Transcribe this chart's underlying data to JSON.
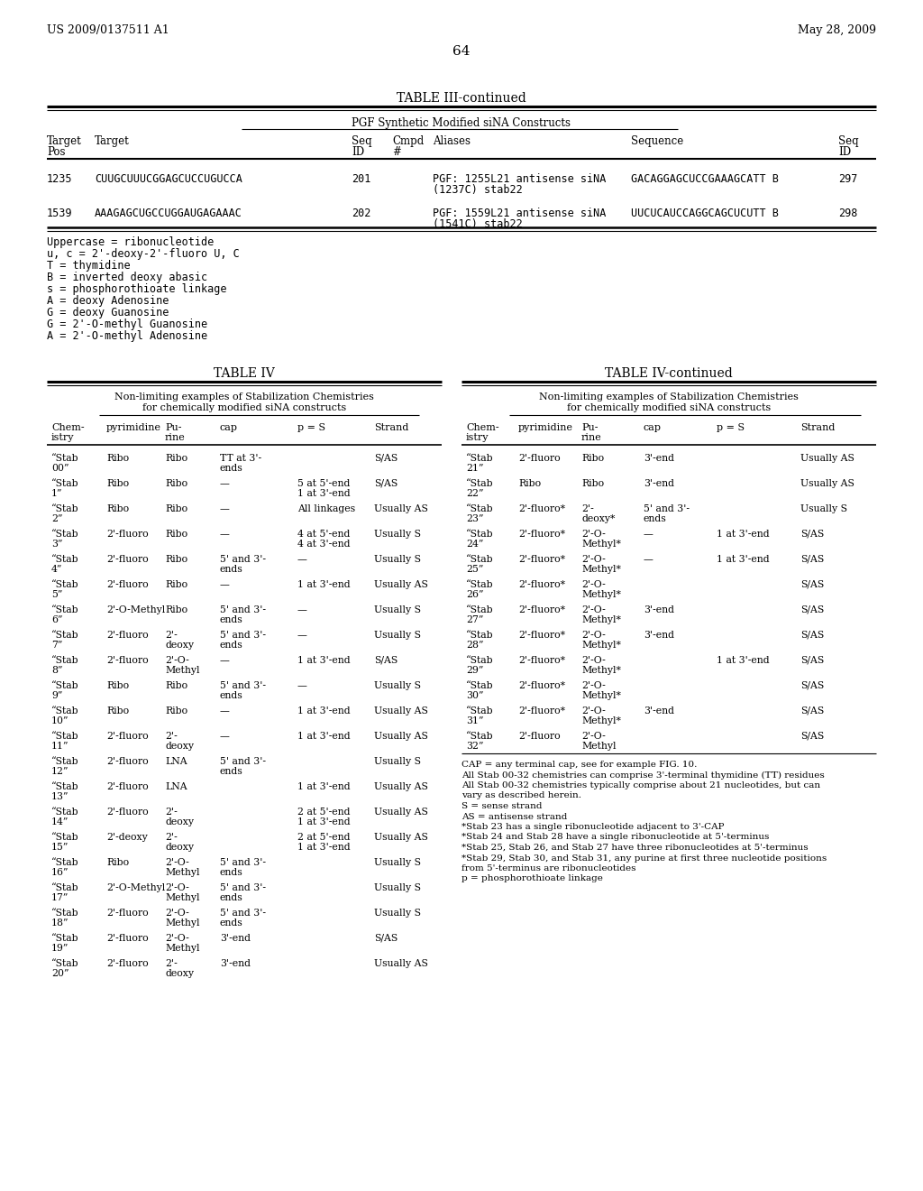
{
  "header_left": "US 2009/0137511 A1",
  "header_right": "May 28, 2009",
  "page_number": "64",
  "table3_title": "TABLE III-continued",
  "table3_subtitle": "PGF Synthetic Modified siNA Constructs",
  "table3_rows": [
    [
      "1235",
      "CUUGCUUUCGGAGCUCCUGUCCA",
      "201",
      "",
      "PGF: 1255L21 antisense siNA\n(1237C) stab22",
      "GACAGGAGCUCCGAAAGCATT B",
      "297"
    ],
    [
      "1539",
      "AAAGAGCUGCCUGGAUGAGAAAC",
      "202",
      "",
      "PGF: 1559L21 antisense siNA\n(1541C) stab22",
      "UUCUCAUCCAGGCAGCUCUTT B",
      "298"
    ]
  ],
  "table3_footnotes": [
    "Uppercase = ribonucleotide",
    "u, c = 2'-deoxy-2'-fluoro U, C",
    "T = thymidine",
    "B = inverted deoxy abasic",
    "s = phosphorothioate linkage",
    "A = deoxy Adenosine",
    "G = deoxy Guanosine",
    "G = 2'-O-methyl Guanosine",
    "A = 2'-O-methyl Adenosine"
  ],
  "table4_title": "TABLE IV",
  "table4cont_title": "TABLE IV-continued",
  "table4_subtitle1": "Non-limiting examples of Stabilization Chemistries",
  "table4_subtitle2": "for chemically modified siNA constructs",
  "table4_col_headers": [
    "Chem-\nistry",
    "pyrimidine",
    "Pu-\nrine",
    "cap",
    "p = S",
    "Strand"
  ],
  "table4_rows": [
    [
      "“Stab\n00”",
      "Ribo",
      "Ribo",
      "TT at 3'-\nends",
      "",
      "S/AS"
    ],
    [
      "“Stab\n1”",
      "Ribo",
      "Ribo",
      "—",
      "5 at 5'-end\n1 at 3'-end",
      "S/AS"
    ],
    [
      "“Stab\n2”",
      "Ribo",
      "Ribo",
      "—",
      "All linkages",
      "Usually AS"
    ],
    [
      "“Stab\n3”",
      "2'-fluoro",
      "Ribo",
      "—",
      "4 at 5'-end\n4 at 3'-end",
      "Usually S"
    ],
    [
      "“Stab\n4”",
      "2'-fluoro",
      "Ribo",
      "5' and 3'-\nends",
      "—",
      "Usually S"
    ],
    [
      "“Stab\n5”",
      "2'-fluoro",
      "Ribo",
      "—",
      "1 at 3'-end",
      "Usually AS"
    ],
    [
      "“Stab\n6”",
      "2'-O-Methyl",
      "Ribo",
      "5' and 3'-\nends",
      "—",
      "Usually S"
    ],
    [
      "“Stab\n7”",
      "2'-fluoro",
      "2'-\ndeoxy",
      "5' and 3'-\nends",
      "—",
      "Usually S"
    ],
    [
      "“Stab\n8”",
      "2'-fluoro",
      "2'-O-\nMethyl",
      "—",
      "1 at 3'-end",
      "S/AS"
    ],
    [
      "“Stab\n9”",
      "Ribo",
      "Ribo",
      "5' and 3'-\nends",
      "—",
      "Usually S"
    ],
    [
      "“Stab\n10”",
      "Ribo",
      "Ribo",
      "—",
      "1 at 3'-end",
      "Usually AS"
    ],
    [
      "“Stab\n11”",
      "2'-fluoro",
      "2'-\ndeoxy",
      "—",
      "1 at 3'-end",
      "Usually AS"
    ],
    [
      "“Stab\n12”",
      "2'-fluoro",
      "LNA",
      "5' and 3'-\nends",
      "",
      "Usually S"
    ],
    [
      "“Stab\n13”",
      "2'-fluoro",
      "LNA",
      "",
      "1 at 3'-end",
      "Usually AS"
    ],
    [
      "“Stab\n14”",
      "2'-fluoro",
      "2'-\ndeoxy",
      "",
      "2 at 5'-end\n1 at 3'-end",
      "Usually AS"
    ],
    [
      "“Stab\n15”",
      "2'-deoxy",
      "2'-\ndeoxy",
      "",
      "2 at 5'-end\n1 at 3'-end",
      "Usually AS"
    ],
    [
      "“Stab\n16”",
      "Ribo",
      "2'-O-\nMethyl",
      "5' and 3'-\nends",
      "",
      "Usually S"
    ],
    [
      "“Stab\n17”",
      "2'-O-Methyl",
      "2'-O-\nMethyl",
      "5' and 3'-\nends",
      "",
      "Usually S"
    ],
    [
      "“Stab\n18”",
      "2'-fluoro",
      "2'-O-\nMethyl",
      "5' and 3'-\nends",
      "",
      "Usually S"
    ],
    [
      "“Stab\n19”",
      "2'-fluoro",
      "2'-O-\nMethyl",
      "3'-end",
      "",
      "S/AS"
    ],
    [
      "“Stab\n20”",
      "2'-fluoro",
      "2'-\ndeoxy",
      "3'-end",
      "",
      "Usually AS"
    ]
  ],
  "table4cont_rows": [
    [
      "“Stab\n21”",
      "2'-fluoro",
      "Ribo",
      "3'-end",
      "",
      "Usually AS"
    ],
    [
      "“Stab\n22”",
      "Ribo",
      "Ribo",
      "3'-end",
      "",
      "Usually AS"
    ],
    [
      "“Stab\n23”",
      "2'-fluoro*",
      "2'-\ndeoxy*",
      "5' and 3'-\nends",
      "",
      "Usually S"
    ],
    [
      "“Stab\n24”",
      "2'-fluoro*",
      "2'-O-\nMethyl*",
      "—",
      "1 at 3'-end",
      "S/AS"
    ],
    [
      "“Stab\n25”",
      "2'-fluoro*",
      "2'-O-\nMethyl*",
      "—",
      "1 at 3'-end",
      "S/AS"
    ],
    [
      "“Stab\n26”",
      "2'-fluoro*",
      "2'-O-\nMethyl*",
      "",
      "",
      "S/AS"
    ],
    [
      "“Stab\n27”",
      "2'-fluoro*",
      "2'-O-\nMethyl*",
      "3'-end",
      "",
      "S/AS"
    ],
    [
      "“Stab\n28”",
      "2'-fluoro*",
      "2'-O-\nMethyl*",
      "3'-end",
      "",
      "S/AS"
    ],
    [
      "“Stab\n29”",
      "2'-fluoro*",
      "2'-O-\nMethyl*",
      "",
      "1 at 3'-end",
      "S/AS"
    ],
    [
      "“Stab\n30”",
      "2'-fluoro*",
      "2'-O-\nMethyl*",
      "",
      "",
      "S/AS"
    ],
    [
      "“Stab\n31”",
      "2'-fluoro*",
      "2'-O-\nMethyl*",
      "3'-end",
      "",
      "S/AS"
    ],
    [
      "“Stab\n32”",
      "2'-fluoro",
      "2'-O-\nMethyl",
      "",
      "",
      "S/AS"
    ]
  ],
  "table4cont_footnotes": [
    "CAP = any terminal cap, see for example FIG. 10.",
    "All Stab 00-32 chemistries can comprise 3'-terminal thymidine (TT) residues",
    "All Stab 00-32 chemistries typically comprise about 21 nucleotides, but can",
    "vary as described herein.",
    "S = sense strand",
    "AS = antisense strand",
    "*Stab 23 has a single ribonucleotide adjacent to 3'-CAP",
    "*Stab 24 and Stab 28 have a single ribonucleotide at 5'-terminus",
    "*Stab 25, Stab 26, and Stab 27 have three ribonucleotides at 5'-terminus",
    "*Stab 29, Stab 30, and Stab 31, any purine at first three nucleotide positions",
    "from 5'-terminus are ribonucleotides",
    "p = phosphorothioate linkage"
  ]
}
